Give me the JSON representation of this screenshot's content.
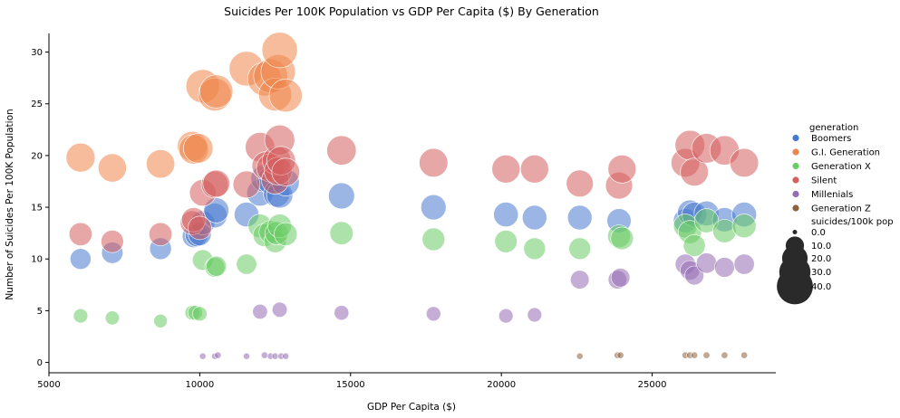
{
  "chart_data": {
    "type": "scatter",
    "title": "Suicides Per 100K Population vs GDP Per Capita ($) By Generation",
    "xlabel": "GDP Per Capita ($)",
    "ylabel": "Number of Suicides Per 100K Population",
    "xlim": [
      5000,
      29100
    ],
    "ylim": [
      -1,
      31.8
    ],
    "xticks": [
      5000,
      10000,
      15000,
      20000,
      25000
    ],
    "yticks": [
      0,
      5,
      10,
      15,
      20,
      25,
      30
    ],
    "grid": false,
    "legend": {
      "placement": "right",
      "hue_title": "generation",
      "size_title": "suicides/100k pop",
      "size_entries": [
        {
          "label": "0.0",
          "value": 0
        },
        {
          "label": "10.0",
          "value": 10
        },
        {
          "label": "20.0",
          "value": 20
        },
        {
          "label": "30.0",
          "value": 30
        },
        {
          "label": "40.0",
          "value": 40
        }
      ]
    },
    "series": [
      {
        "name": "Boomers",
        "color": "#4878d0",
        "points": [
          [
            6050,
            10.0
          ],
          [
            7100,
            10.6
          ],
          [
            8700,
            11.0
          ],
          [
            9800,
            12.2
          ],
          [
            9900,
            12.3
          ],
          [
            10000,
            12.4
          ],
          [
            10100,
            13.5
          ],
          [
            10500,
            14.2
          ],
          [
            10550,
            14.7
          ],
          [
            11550,
            14.3
          ],
          [
            12000,
            16.4
          ],
          [
            12150,
            17.8
          ],
          [
            12350,
            17.6
          ],
          [
            12550,
            16.3
          ],
          [
            12650,
            16.2
          ],
          [
            12850,
            17.4
          ],
          [
            14700,
            16.1
          ],
          [
            17750,
            15.0
          ],
          [
            20150,
            14.3
          ],
          [
            21100,
            14.0
          ],
          [
            22600,
            14.0
          ],
          [
            23900,
            13.7
          ],
          [
            26100,
            13.7
          ],
          [
            26250,
            14.5
          ],
          [
            26400,
            14.3
          ],
          [
            26800,
            14.4
          ],
          [
            27400,
            13.8
          ],
          [
            28050,
            14.3
          ]
        ]
      },
      {
        "name": "G.I. Generation",
        "color": "#ee854a",
        "points": [
          [
            6050,
            19.8
          ],
          [
            7100,
            18.8
          ],
          [
            8700,
            19.2
          ],
          [
            9750,
            20.9
          ],
          [
            9800,
            20.6
          ],
          [
            9950,
            20.7
          ],
          [
            10100,
            26.7
          ],
          [
            10500,
            25.9
          ],
          [
            10550,
            26.2
          ],
          [
            11550,
            28.4
          ],
          [
            12150,
            27.4
          ],
          [
            12350,
            27.7
          ],
          [
            12500,
            25.9
          ],
          [
            12600,
            28.1
          ],
          [
            12650,
            30.2
          ],
          [
            12850,
            25.8
          ]
        ]
      },
      {
        "name": "Generation X",
        "color": "#6acc64",
        "points": [
          [
            6050,
            4.5
          ],
          [
            7100,
            4.3
          ],
          [
            8700,
            4.0
          ],
          [
            9750,
            4.8
          ],
          [
            9850,
            4.8
          ],
          [
            10000,
            4.7
          ],
          [
            10100,
            9.9
          ],
          [
            10500,
            9.2
          ],
          [
            10550,
            9.3
          ],
          [
            11550,
            9.5
          ],
          [
            12000,
            13.2
          ],
          [
            12150,
            12.3
          ],
          [
            12350,
            12.6
          ],
          [
            12500,
            11.7
          ],
          [
            12550,
            12.5
          ],
          [
            12650,
            13.2
          ],
          [
            12850,
            12.4
          ],
          [
            14700,
            12.5
          ],
          [
            17750,
            11.9
          ],
          [
            20150,
            11.7
          ],
          [
            21100,
            11.0
          ],
          [
            22600,
            11.0
          ],
          [
            23900,
            12.2
          ],
          [
            24000,
            12.0
          ],
          [
            26100,
            13.2
          ],
          [
            26250,
            12.6
          ],
          [
            26400,
            11.3
          ],
          [
            26800,
            13.7
          ],
          [
            27400,
            12.7
          ],
          [
            28050,
            13.2
          ]
        ]
      },
      {
        "name": "Silent",
        "color": "#d65f5f",
        "points": [
          [
            6050,
            12.4
          ],
          [
            7100,
            11.7
          ],
          [
            8700,
            12.4
          ],
          [
            9750,
            13.5
          ],
          [
            9800,
            13.8
          ],
          [
            10000,
            13.0
          ],
          [
            10100,
            16.4
          ],
          [
            10500,
            17.2
          ],
          [
            10550,
            17.3
          ],
          [
            11550,
            17.2
          ],
          [
            12000,
            20.8
          ],
          [
            12200,
            19.0
          ],
          [
            12350,
            18.8
          ],
          [
            12500,
            17.6
          ],
          [
            12550,
            19.5
          ],
          [
            12600,
            18.5
          ],
          [
            12650,
            21.5
          ],
          [
            12700,
            19.5
          ],
          [
            12850,
            18.4
          ],
          [
            14700,
            20.5
          ],
          [
            17750,
            19.3
          ],
          [
            20150,
            18.7
          ],
          [
            21100,
            18.7
          ],
          [
            22600,
            17.3
          ],
          [
            23900,
            17.1
          ],
          [
            24000,
            18.7
          ],
          [
            26100,
            19.3
          ],
          [
            26250,
            21.0
          ],
          [
            26400,
            18.4
          ],
          [
            26800,
            20.7
          ],
          [
            27400,
            20.5
          ],
          [
            28050,
            19.3
          ]
        ]
      },
      {
        "name": "Millenials",
        "color": "#956cb4",
        "points": [
          [
            10100,
            0.6
          ],
          [
            10500,
            0.6
          ],
          [
            10600,
            0.7
          ],
          [
            11550,
            0.6
          ],
          [
            12000,
            4.9
          ],
          [
            12150,
            0.7
          ],
          [
            12350,
            0.6
          ],
          [
            12500,
            0.6
          ],
          [
            12650,
            5.1
          ],
          [
            12700,
            0.6
          ],
          [
            12850,
            0.6
          ],
          [
            14700,
            4.8
          ],
          [
            17750,
            4.7
          ],
          [
            20150,
            4.5
          ],
          [
            21100,
            4.6
          ],
          [
            22600,
            8.0
          ],
          [
            23850,
            8.0
          ],
          [
            23950,
            8.2
          ],
          [
            26100,
            9.5
          ],
          [
            26250,
            8.9
          ],
          [
            26400,
            8.4
          ],
          [
            26800,
            9.6
          ],
          [
            27400,
            9.2
          ],
          [
            28050,
            9.5
          ]
        ]
      },
      {
        "name": "Generation Z",
        "color": "#8c613c",
        "points": [
          [
            22600,
            0.6
          ],
          [
            23850,
            0.7
          ],
          [
            23950,
            0.7
          ],
          [
            26100,
            0.7
          ],
          [
            26250,
            0.7
          ],
          [
            26400,
            0.7
          ],
          [
            26800,
            0.7
          ],
          [
            27400,
            0.7
          ],
          [
            28050,
            0.7
          ]
        ]
      }
    ]
  }
}
